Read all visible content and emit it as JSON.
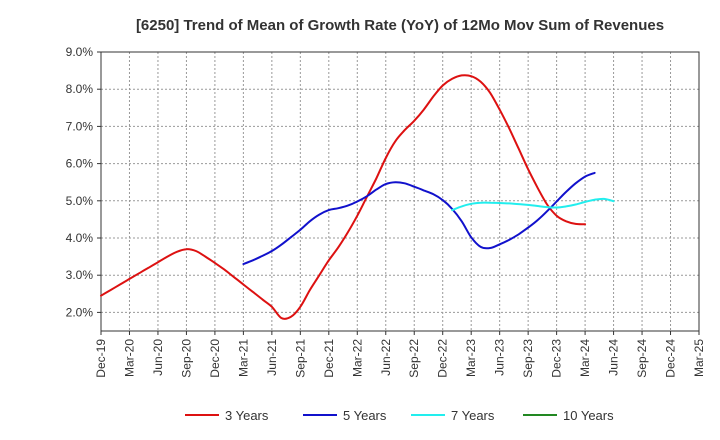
{
  "chart_data": {
    "type": "line",
    "title": "[6250]  Trend of Mean of Growth Rate (YoY) of 12Mo Mov Sum of Revenues",
    "xlabel": "",
    "ylabel": "",
    "ylim": [
      1.5,
      9.0
    ],
    "y_ticks": [
      "2.0%",
      "3.0%",
      "4.0%",
      "5.0%",
      "6.0%",
      "7.0%",
      "8.0%",
      "9.0%"
    ],
    "y_tick_values": [
      2.0,
      3.0,
      4.0,
      5.0,
      6.0,
      7.0,
      8.0,
      9.0
    ],
    "x_ticks": [
      "Dec-19",
      "Mar-20",
      "Jun-20",
      "Sep-20",
      "Dec-20",
      "Mar-21",
      "Jun-21",
      "Sep-21",
      "Dec-21",
      "Mar-22",
      "Jun-22",
      "Sep-22",
      "Dec-22",
      "Mar-23",
      "Jun-23",
      "Sep-23",
      "Dec-23",
      "Mar-24",
      "Jun-24",
      "Sep-24",
      "Dec-24",
      "Mar-25"
    ],
    "grid": true,
    "legend_position": "bottom",
    "series": [
      {
        "name": "3 Years",
        "color": "#dd1111",
        "start_index": 0,
        "values": [
          2.45,
          2.6,
          2.75,
          2.9,
          3.05,
          3.2,
          3.35,
          3.5,
          3.63,
          3.7,
          3.65,
          3.5,
          3.33,
          3.15,
          2.95,
          2.75,
          2.55,
          2.35,
          2.15,
          1.85,
          1.88,
          2.15,
          2.6,
          3.0,
          3.4,
          3.75,
          4.15,
          4.6,
          5.1,
          5.6,
          6.15,
          6.6,
          6.9,
          7.15,
          7.45,
          7.8,
          8.1,
          8.28,
          8.37,
          8.35,
          8.2,
          7.9,
          7.45,
          6.95,
          6.4,
          5.85,
          5.35,
          4.9,
          4.6,
          4.45,
          4.38,
          4.37
        ]
      },
      {
        "name": "5 Years",
        "color": "#1111cc",
        "start_index": 15,
        "values": [
          3.3,
          3.4,
          3.52,
          3.65,
          3.82,
          4.02,
          4.22,
          4.45,
          4.63,
          4.75,
          4.8,
          4.87,
          4.98,
          5.12,
          5.3,
          5.45,
          5.5,
          5.47,
          5.38,
          5.28,
          5.18,
          5.02,
          4.78,
          4.45,
          4.02,
          3.76,
          3.73,
          3.83,
          3.95,
          4.1,
          4.28,
          4.48,
          4.72,
          4.98,
          5.24,
          5.47,
          5.65,
          5.75
        ]
      },
      {
        "name": "7 Years",
        "color": "#22eeee",
        "start_index": 37,
        "values": [
          4.75,
          4.85,
          4.92,
          4.95,
          4.95,
          4.94,
          4.93,
          4.91,
          4.89,
          4.86,
          4.83,
          4.82,
          4.85,
          4.9,
          4.97,
          5.03,
          5.05,
          4.99
        ]
      },
      {
        "name": "10 Years",
        "color": "#228822",
        "start_index": 0,
        "values": []
      }
    ]
  }
}
